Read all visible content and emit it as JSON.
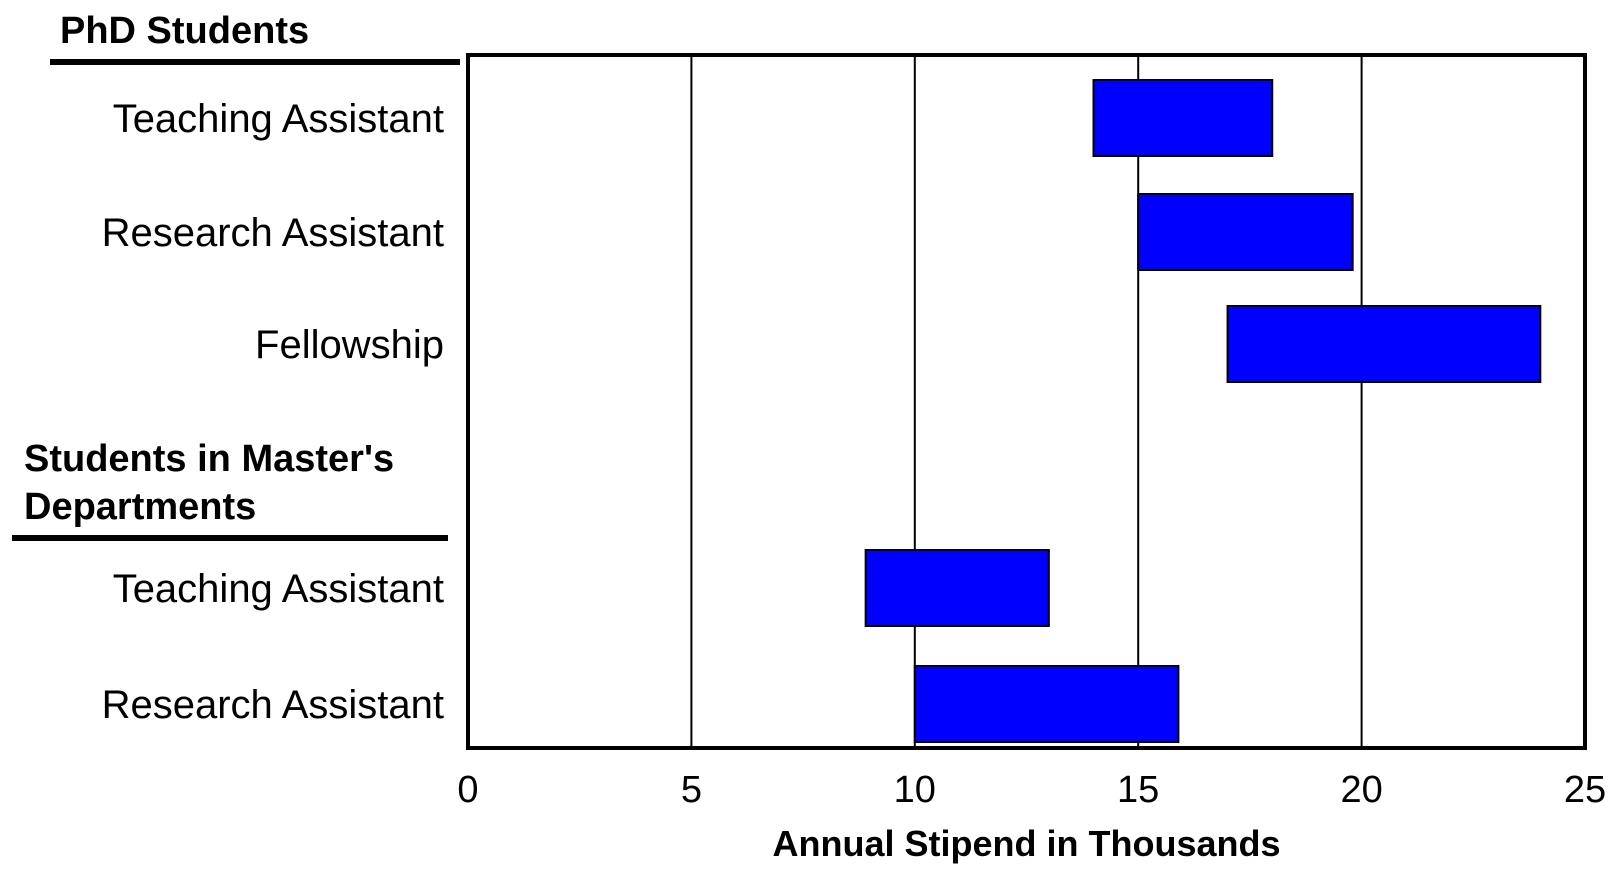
{
  "chart_data": {
    "type": "bar",
    "orientation": "horizontal-range",
    "xlabel": "Annual Stipend in Thousands",
    "xlim": [
      0,
      25
    ],
    "xticks": [
      0,
      5,
      10,
      15,
      20,
      25
    ],
    "grid": true,
    "colors": {
      "bar_fill": "#0000ff",
      "bar_stroke": "#000000",
      "grid": "#000000",
      "frame": "#000000"
    },
    "groups": [
      {
        "label": "PhD Students",
        "rows": [
          {
            "label": "Teaching Assistant",
            "min": 14,
            "max": 18
          },
          {
            "label": "Research Assistant",
            "min": 15,
            "max": 19.8
          },
          {
            "label": "Fellowship",
            "min": 17,
            "max": 24
          }
        ]
      },
      {
        "label_lines": [
          "Students in Master's",
          "Departments"
        ],
        "rows": [
          {
            "label": "Teaching Assistant",
            "min": 8.9,
            "max": 13
          },
          {
            "label": "Research Assistant",
            "min": 10,
            "max": 15.9
          }
        ]
      }
    ]
  }
}
